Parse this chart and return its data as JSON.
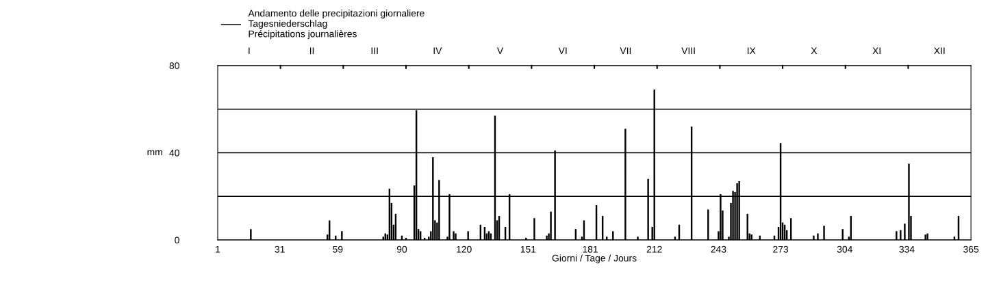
{
  "chart_data": {
    "type": "bar",
    "xlabel": "Giorni / Tage / Jours",
    "ylabel": "mm",
    "xlim": [
      1,
      365
    ],
    "xticks": [
      1,
      31,
      59,
      90,
      120,
      151,
      181,
      212,
      243,
      273,
      304,
      334,
      365
    ],
    "annotations": [
      "I",
      "II",
      "III",
      "IV",
      "V",
      "VI",
      "VII",
      "VIII",
      "IX",
      "X",
      "XI",
      "XII"
    ],
    "ylim": [
      0,
      80
    ],
    "yticks": [
      0,
      {
        "value": 20,
        "label": null
      },
      40,
      {
        "value": 60,
        "label": null
      },
      80
    ],
    "grid": "y",
    "legend": "top left",
    "series": [
      {
        "name": "Andamento delle precipitazioni giornaliere\nTagesniederschlag\nPrécipitations journalières",
        "color": "#000000",
        "x": [
          17,
          54,
          55,
          58,
          61,
          81,
          82,
          83,
          84,
          85,
          86,
          87,
          90,
          92,
          96,
          97,
          98,
          99,
          101,
          103,
          104,
          105,
          106,
          107,
          108,
          112,
          113,
          115,
          116,
          122,
          128,
          130,
          131,
          132,
          133,
          135,
          136,
          137,
          140,
          142,
          150,
          154,
          160,
          161,
          162,
          164,
          174,
          177,
          178,
          184,
          187,
          189,
          192,
          198,
          204,
          209,
          211,
          212,
          222,
          224,
          230,
          238,
          243,
          244,
          245,
          248,
          249,
          250,
          251,
          252,
          253,
          257,
          258,
          259,
          263,
          270,
          272,
          273,
          274,
          275,
          276,
          278,
          289,
          291,
          294,
          303,
          306,
          307,
          329,
          331,
          333,
          335,
          336,
          343,
          344,
          357,
          359
        ],
        "values": [
          5,
          2.5,
          9,
          2,
          4,
          1.5,
          3,
          2.5,
          23.5,
          17,
          7,
          12,
          2,
          1,
          25,
          59.5,
          5,
          4,
          1,
          1.5,
          4,
          38,
          9,
          8,
          27.5,
          1.5,
          21,
          4,
          3,
          4,
          7,
          6,
          3,
          4,
          3,
          57,
          9,
          11,
          6,
          21,
          1,
          10,
          2,
          3,
          13,
          41,
          5,
          1.5,
          9,
          16,
          11,
          1.5,
          4,
          51,
          1.5,
          28,
          6,
          69,
          1.5,
          7,
          52,
          14,
          4,
          21,
          13.5,
          1.5,
          17,
          22.5,
          22,
          26,
          27,
          12,
          3,
          2.5,
          2,
          2,
          6,
          44.5,
          8,
          7,
          4.5,
          10,
          2,
          3,
          6.5,
          5,
          1.5,
          11,
          4,
          4.5,
          7.5,
          35,
          11,
          2.5,
          3,
          1.5,
          11
        ]
      }
    ]
  }
}
